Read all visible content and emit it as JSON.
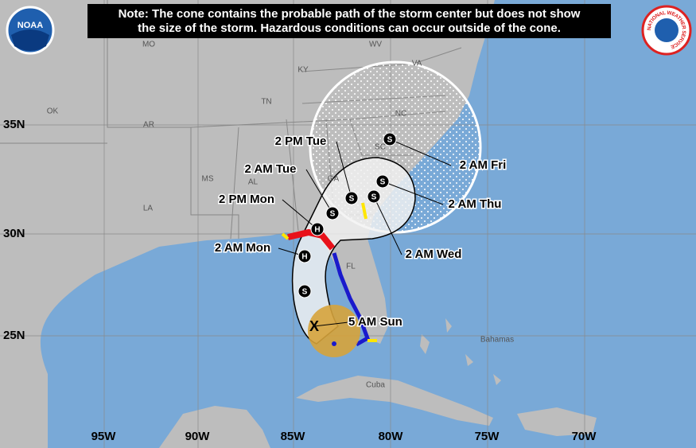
{
  "note": {
    "line1": "Note: The cone contains the probable path of the storm center but does not show",
    "line2": "the size of the storm. Hazardous conditions can occur outside of the cone."
  },
  "logos": {
    "noaa": "NOAA",
    "nws": "NATIONAL WEATHER SERVICE"
  },
  "longitude_labels": [
    "95W",
    "90W",
    "85W",
    "80W",
    "75W",
    "70W"
  ],
  "latitude_labels": [
    "35N",
    "30N",
    "25N"
  ],
  "region_labels": [
    "MO",
    "WV",
    "VA",
    "KY",
    "OK",
    "TN",
    "NC",
    "AR",
    "SC",
    "MS",
    "AL",
    "GA",
    "LA",
    "FL",
    "Bahamas",
    "Cuba"
  ],
  "current_position": {
    "marker": "X",
    "label": "5 AM Sun"
  },
  "forecast_points": [
    {
      "marker": "H",
      "label": "2 AM Mon"
    },
    {
      "marker": "H",
      "label": "2 PM Mon"
    },
    {
      "marker": "S",
      "label": "2 AM Tue"
    },
    {
      "marker": "S",
      "label": "2 PM Tue"
    },
    {
      "marker": "S",
      "label": "2 AM Wed"
    },
    {
      "marker": "S",
      "label": "2 AM Thu"
    },
    {
      "marker": "S",
      "label": "2 AM Fri"
    },
    {
      "marker": "S",
      "label": null
    }
  ]
}
